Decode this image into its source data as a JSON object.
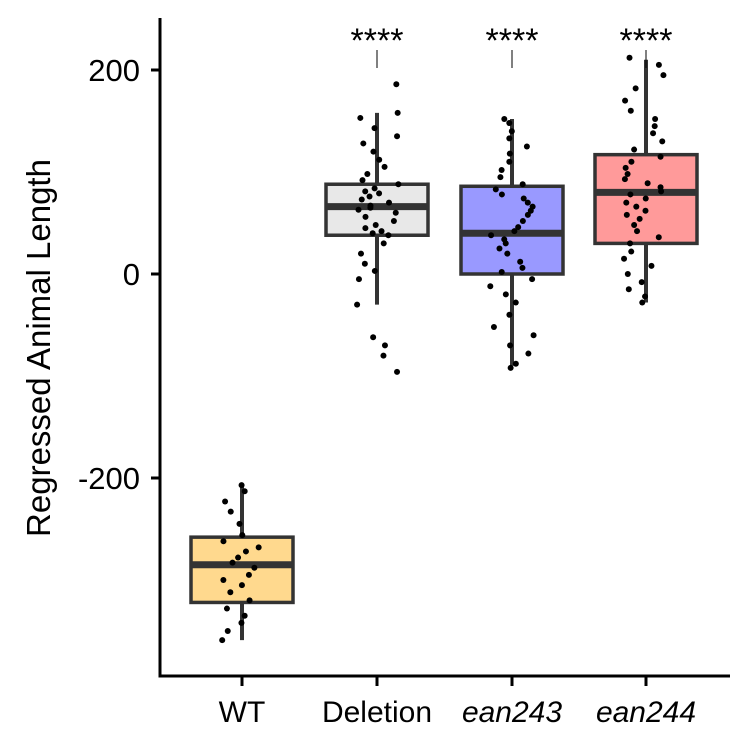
{
  "chart_data": {
    "type": "box",
    "title": "",
    "ylabel": "Regressed Animal Length",
    "xlabel": "",
    "ylim": [
      -400,
      250
    ],
    "yticks": [
      200,
      0,
      -200
    ],
    "ytick_labels": [
      "200",
      "0",
      "-200"
    ],
    "grid": false,
    "legend": "none",
    "categories": [
      {
        "label": "WT",
        "italic": false,
        "fill": "#FFD98E",
        "box": {
          "min": -359,
          "q1": -322,
          "median": -285,
          "q3": -258,
          "max": -207
        },
        "significance": "",
        "points": [
          -207,
          -213,
          -223,
          -233,
          -245,
          -256,
          -262,
          -268,
          -272,
          -278,
          -283,
          -288,
          -295,
          -300,
          -305,
          -312,
          -320,
          -328,
          -335,
          -342,
          -350,
          -359
        ]
      },
      {
        "label": "Deletion",
        "italic": false,
        "fill": "#E8E8E8",
        "box": {
          "min": -30,
          "q1": 38,
          "median": 66,
          "q3": 88,
          "max": 158
        },
        "significance": "****",
        "points": [
          186,
          158,
          153,
          143,
          135,
          128,
          120,
          112,
          105,
          98,
          92,
          88,
          84,
          81,
          79,
          76,
          73,
          70,
          67,
          65,
          63,
          60,
          56,
          52,
          48,
          45,
          42,
          40,
          38,
          30,
          20,
          10,
          3,
          -5,
          -30,
          -62,
          -70,
          -80,
          -96
        ]
      },
      {
        "label": "ean243",
        "italic": true,
        "fill": "#9999FF",
        "box": {
          "min": -90,
          "q1": 0,
          "median": 40,
          "q3": 86,
          "max": 152
        },
        "significance": "****",
        "points": [
          152,
          148,
          140,
          133,
          125,
          118,
          110,
          102,
          95,
          88,
          83,
          78,
          74,
          70,
          66,
          62,
          58,
          52,
          46,
          42,
          38,
          34,
          30,
          25,
          20,
          12,
          6,
          2,
          -5,
          -12,
          -20,
          -28,
          -40,
          -52,
          -60,
          -70,
          -78,
          -88,
          -92
        ]
      },
      {
        "label": "ean244",
        "italic": true,
        "fill": "#FF9A9A",
        "box": {
          "min": -28,
          "q1": 30,
          "median": 80,
          "q3": 117,
          "max": 210
        },
        "significance": "****",
        "points": [
          212,
          205,
          195,
          182,
          170,
          160,
          152,
          145,
          138,
          130,
          122,
          115,
          110,
          104,
          98,
          93,
          89,
          85,
          81,
          78,
          74,
          70,
          66,
          62,
          58,
          54,
          48,
          42,
          36,
          30,
          22,
          15,
          8,
          0,
          -8,
          -15,
          -22,
          -28
        ]
      }
    ]
  }
}
